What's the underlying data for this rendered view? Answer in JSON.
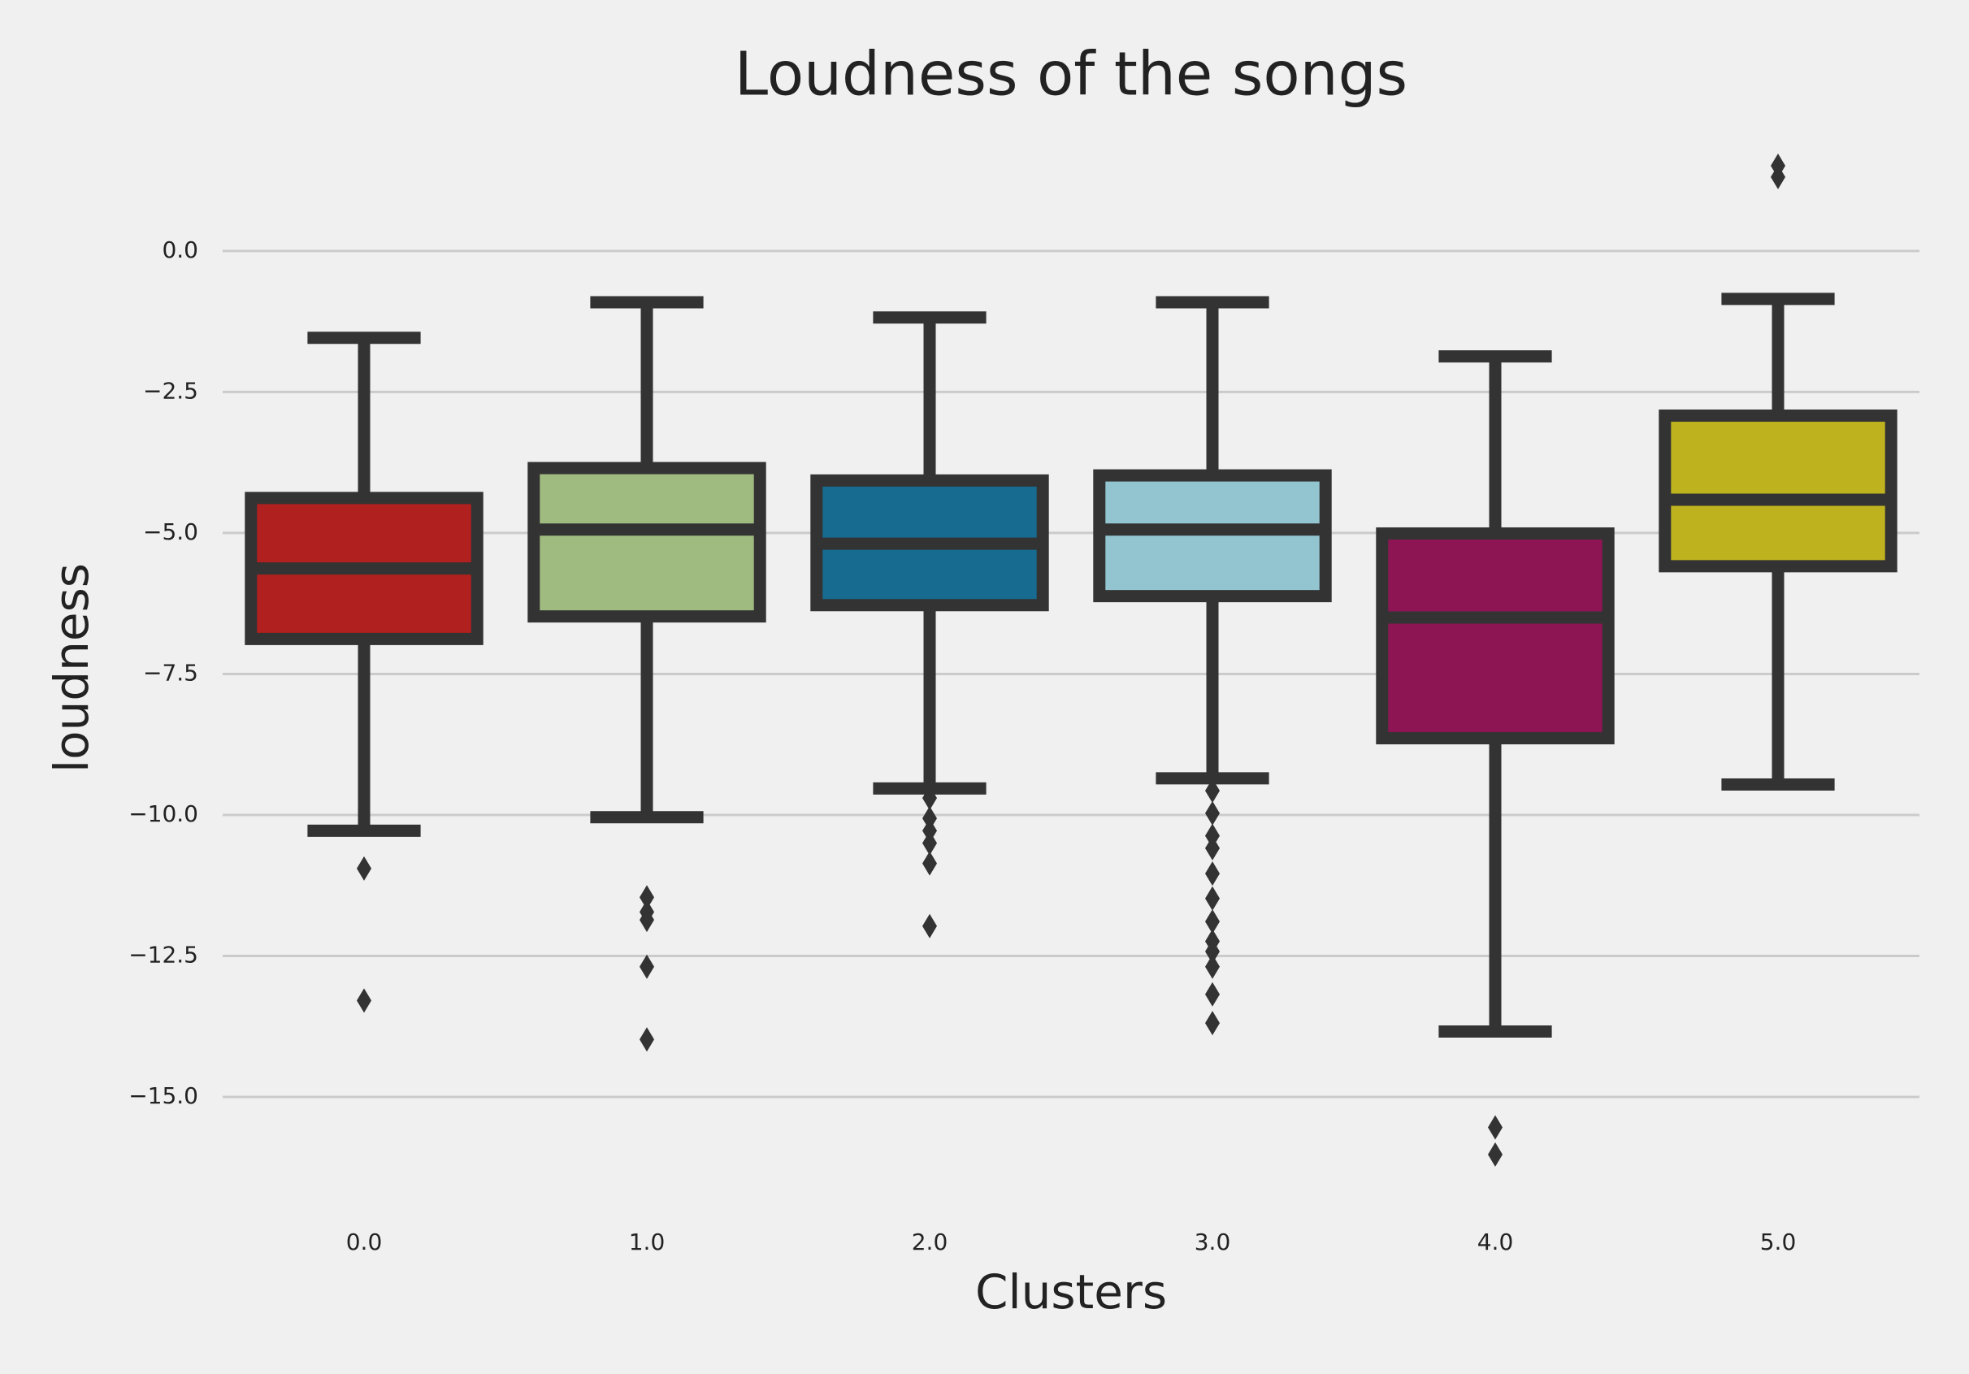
{
  "chart_data": {
    "type": "box",
    "title": "Loudness of the songs",
    "xlabel": "Clusters",
    "ylabel": "loudness",
    "categories": [
      "0.0",
      "1.0",
      "2.0",
      "3.0",
      "4.0",
      "5.0"
    ],
    "colors": [
      "#b0201e",
      "#a0bb80",
      "#176b91",
      "#93c5d1",
      "#8e1554",
      "#bfb21f"
    ],
    "boxes": [
      {
        "whislo": -10.28,
        "q1": -6.88,
        "med": -5.63,
        "q3": -4.38,
        "whishi": -1.54,
        "fliers": [
          -10.95,
          -13.29
        ]
      },
      {
        "whislo": -10.04,
        "q1": -6.48,
        "med": -4.94,
        "q3": -3.85,
        "whishi": -0.91,
        "fliers": [
          -11.46,
          -11.72,
          -11.86,
          -12.69,
          -13.98
        ]
      },
      {
        "whislo": -9.53,
        "q1": -6.28,
        "med": -5.19,
        "q3": -4.07,
        "whishi": -1.18,
        "fliers": [
          -9.7,
          -10.06,
          -10.28,
          -10.5,
          -10.86,
          -11.97
        ]
      },
      {
        "whislo": -9.35,
        "q1": -6.12,
        "med": -4.94,
        "q3": -3.98,
        "whishi": -0.91,
        "fliers": [
          -9.57,
          -9.97,
          -10.37,
          -10.59,
          -11.04,
          -11.48,
          -11.89,
          -12.24,
          -12.42,
          -12.69,
          -13.18,
          -13.69
        ]
      },
      {
        "whislo": -13.84,
        "q1": -8.64,
        "med": -6.5,
        "q3": -5.01,
        "whishi": -1.87,
        "fliers": [
          -15.54,
          -16.02
        ]
      },
      {
        "whislo": -9.46,
        "q1": -5.59,
        "med": -4.41,
        "q3": -2.92,
        "whishi": -0.85,
        "fliers": [
          1.51,
          1.31
        ]
      }
    ],
    "ylim": [
      -16.8,
      2.0
    ],
    "yticks": [
      {
        "value": 0,
        "label": "0.0"
      },
      {
        "value": -2.5,
        "label": "−2.5"
      },
      {
        "value": -5,
        "label": "−5.0"
      },
      {
        "value": -7.5,
        "label": "−7.5"
      },
      {
        "value": -10,
        "label": "−10.0"
      },
      {
        "value": -12.5,
        "label": "−12.5"
      },
      {
        "value": -15,
        "label": "−15.0"
      }
    ],
    "grid": true
  }
}
